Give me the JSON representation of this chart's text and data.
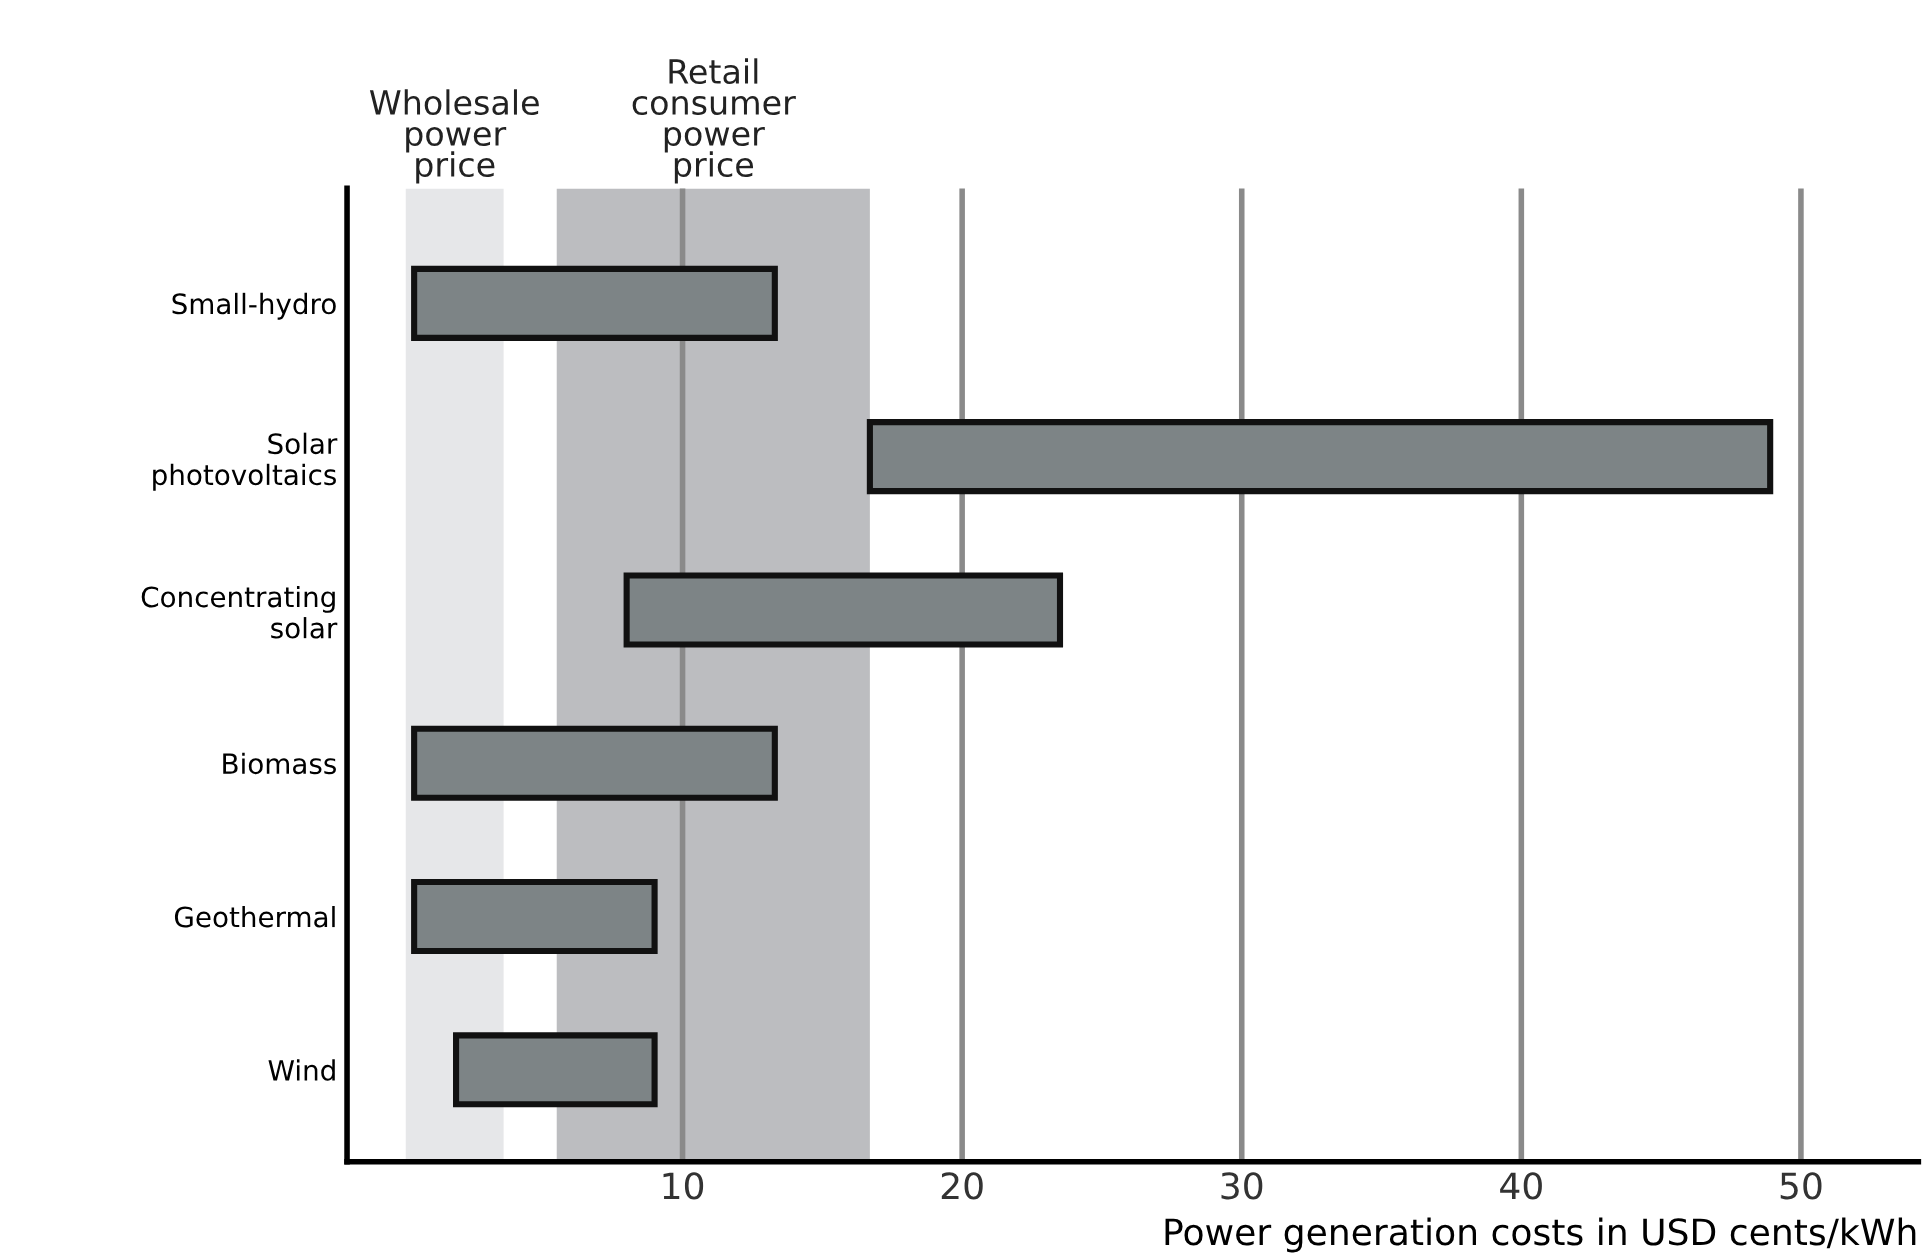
{
  "chart_data": {
    "type": "bar",
    "orientation": "horizontal",
    "xlabel": "Power generation costs in USD cents/kWh",
    "categories": [
      "Small-hydro",
      "Solar\nphotovoltaics",
      "Concentrating\nsolar",
      "Biomass",
      "Geothermal",
      "Wind"
    ],
    "base": [
      0.4,
      16.7,
      8.0,
      0.4,
      0.4,
      1.9
    ],
    "values": [
      12.9,
      32.2,
      15.5,
      12.9,
      8.6,
      7.1
    ],
    "color": "#7d8486",
    "xlim": [
      -2,
      54.2
    ],
    "xticks": [
      10,
      20,
      30,
      40,
      50
    ],
    "grid": "x",
    "bands": [
      {
        "axis": "x",
        "from": 0.1,
        "to": 3.6,
        "label": "Wholesale\npower\nprice",
        "color": "#e6e7e9"
      },
      {
        "axis": "x",
        "from": 5.5,
        "to": 16.7,
        "label": "Retail\nconsumer\npower\nprice",
        "color": "#bcbdc0"
      }
    ]
  }
}
